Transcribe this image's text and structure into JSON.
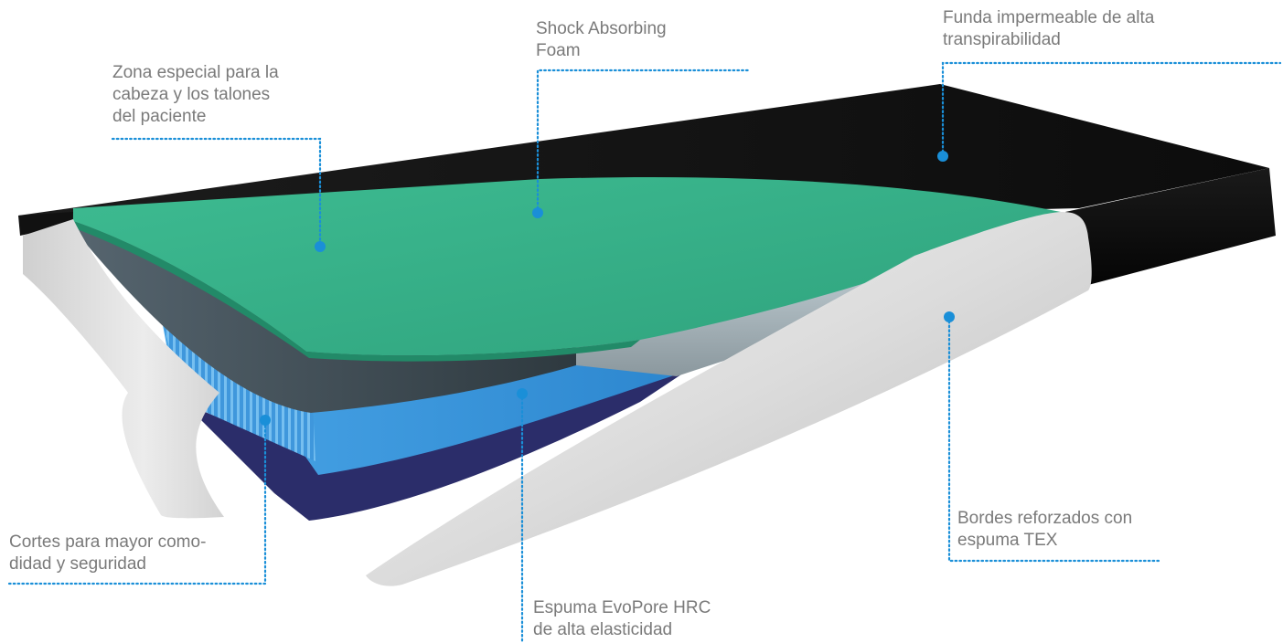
{
  "diagram": {
    "callouts": [
      {
        "id": "head-heel-zone",
        "lines": [
          "Zona especial para la",
          "cabeza y los talones",
          "del paciente"
        ]
      },
      {
        "id": "shock-foam",
        "lines": [
          "Shock Absorbing",
          "Foam"
        ]
      },
      {
        "id": "waterproof-cover",
        "lines": [
          "Funda impermeable de alta",
          "transpirabilidad"
        ]
      },
      {
        "id": "comfort-cuts",
        "lines": [
          "Cortes para mayor como-",
          "didad y seguridad"
        ]
      },
      {
        "id": "evopore-foam",
        "lines": [
          "Espuma EvoPore HRC",
          "de alta elasticidad"
        ]
      },
      {
        "id": "reinforced-edges",
        "lines": [
          "Bordes reforzados con",
          "espuma TEX"
        ]
      }
    ],
    "colors": {
      "callout_text": "#7a7a7a",
      "leader_line": "#1a8fd8",
      "cover": "#141414",
      "shock_foam": "#35b088",
      "evopore_foam": "#3a9be0",
      "edge_foam": "#e4e4e4",
      "base_layer": "#2b2d6a"
    }
  }
}
